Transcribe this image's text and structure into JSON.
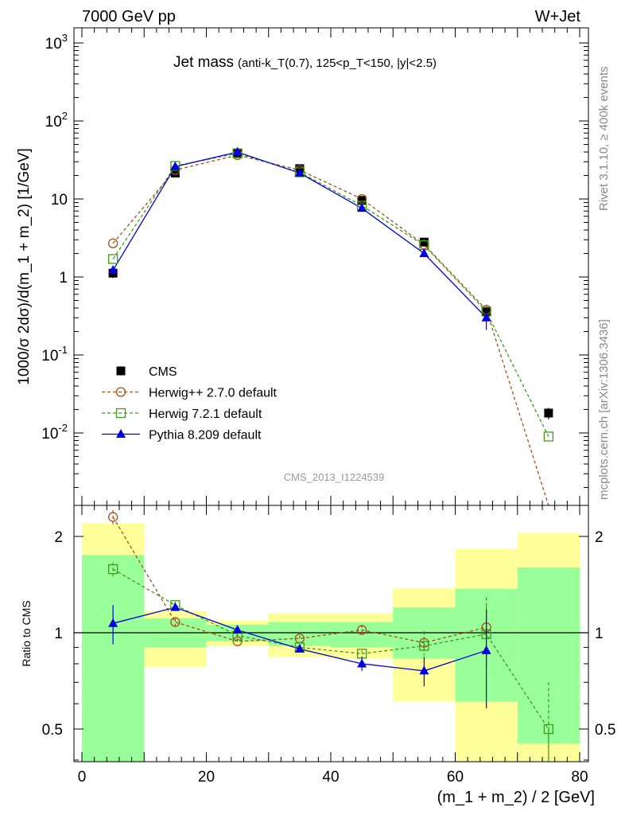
{
  "header": {
    "left": "7000 GeV pp",
    "right": "W+Jet"
  },
  "top_panel": {
    "title_main": "Jet mass",
    "title_sub": "(anti-k_T(0.7), 125<p_T<150, |y|<2.5)",
    "ylabel": "1000/σ 2dσ)/d(m_1 + m_2) [1/GeV]",
    "analysis_tag": "CMS_2013_I1224539"
  },
  "side_labels": {
    "rivet": "Rivet 3.1.10, ≥ 400k events",
    "mcplots": "mcplots.cern.ch [arXiv:1306.3436]"
  },
  "colors": {
    "cms": "#000000",
    "herwigpp": "#a0521e",
    "herwig7": "#3f9a1b",
    "pythia": "#0000e0",
    "band_outer": "#ffff99",
    "band_inner": "#99ff99"
  },
  "chart_data": [
    {
      "type": "scatter",
      "panel": "main",
      "yscale": "log",
      "ylim": [
        0.001,
        1500
      ],
      "xlim": [
        -1,
        81
      ],
      "y_tick_labels": [
        "10^3",
        "10^2",
        "10",
        "1",
        "10^-1",
        "10^-2"
      ],
      "legend_position": "lower-left",
      "x": [
        5,
        15,
        25,
        35,
        45,
        55,
        65,
        75
      ],
      "series": [
        {
          "name": "CMS",
          "values": [
            1.12,
            21.5,
            39.0,
            24.5,
            9.6,
            2.8,
            0.36,
            0.018
          ],
          "errors": [
            0.15,
            1.5,
            2.0,
            1.5,
            0.8,
            0.3,
            0.06,
            0.003
          ]
        },
        {
          "name": "Herwig++ 2.7.0 default",
          "values": [
            2.7,
            23.5,
            36.5,
            23.5,
            10.0,
            2.6,
            0.38,
            0.0007
          ]
        },
        {
          "name": "Herwig 7.2.1 default",
          "values": [
            1.7,
            26.5,
            38.5,
            22.0,
            8.2,
            2.55,
            0.36,
            0.009
          ]
        },
        {
          "name": "Pythia 8.209 default",
          "values": [
            1.22,
            26.0,
            40.0,
            21.5,
            7.6,
            2.0,
            0.3
          ],
          "errors": [
            0.08,
            1.0,
            1.2,
            0.8,
            0.4,
            0.2,
            0.09
          ]
        }
      ]
    },
    {
      "type": "scatter",
      "panel": "ratio",
      "ylabel": "Ratio to CMS",
      "xlabel": "(m_1 + m_2) / 2 [GeV]",
      "ylim": [
        0.35,
        2.3
      ],
      "xlim": [
        -1,
        81
      ],
      "x_ticks": [
        0,
        20,
        40,
        60,
        80
      ],
      "y_ticks": [
        0.5,
        1,
        2
      ],
      "bins": [
        [
          0,
          10
        ],
        [
          10,
          20
        ],
        [
          20,
          30
        ],
        [
          30,
          40
        ],
        [
          40,
          50
        ],
        [
          50,
          60
        ],
        [
          60,
          70
        ],
        [
          70,
          80
        ]
      ],
      "band_outer": [
        [
          0.35,
          2.2
        ],
        [
          0.78,
          1.17
        ],
        [
          0.91,
          1.09
        ],
        [
          0.84,
          1.15
        ],
        [
          0.83,
          1.15
        ],
        [
          0.61,
          1.38
        ],
        [
          0.35,
          1.83
        ],
        [
          0.35,
          2.05
        ]
      ],
      "band_inner": [
        [
          0.35,
          1.75
        ],
        [
          0.9,
          1.11
        ],
        [
          0.94,
          1.06
        ],
        [
          0.91,
          1.08
        ],
        [
          0.9,
          1.08
        ],
        [
          0.83,
          1.2
        ],
        [
          0.61,
          1.37
        ],
        [
          0.45,
          1.6
        ]
      ],
      "x": [
        5,
        15,
        25,
        35,
        45,
        55,
        65,
        75
      ],
      "series": [
        {
          "name": "Herwig++ 2.7.0 default",
          "values": [
            2.3,
            1.08,
            0.94,
            0.96,
            1.02,
            0.93,
            1.04
          ],
          "errors": [
            0.12,
            0.03,
            0.02,
            0.02,
            0.04,
            0.08,
            0.25
          ]
        },
        {
          "name": "Herwig 7.2.1 default",
          "values": [
            1.58,
            1.22,
            0.98,
            0.9,
            0.86,
            0.91,
            0.99,
            0.5
          ],
          "errors": [
            0.08,
            0.03,
            0.02,
            0.02,
            0.02,
            0.06,
            0.22,
            0.2
          ]
        },
        {
          "name": "Pythia 8.209 default",
          "values": [
            1.07,
            1.2,
            1.02,
            0.89,
            0.8,
            0.76,
            0.88
          ],
          "errors": [
            0.15,
            0.02,
            0.02,
            0.02,
            0.04,
            0.08,
            0.3
          ]
        }
      ]
    }
  ]
}
